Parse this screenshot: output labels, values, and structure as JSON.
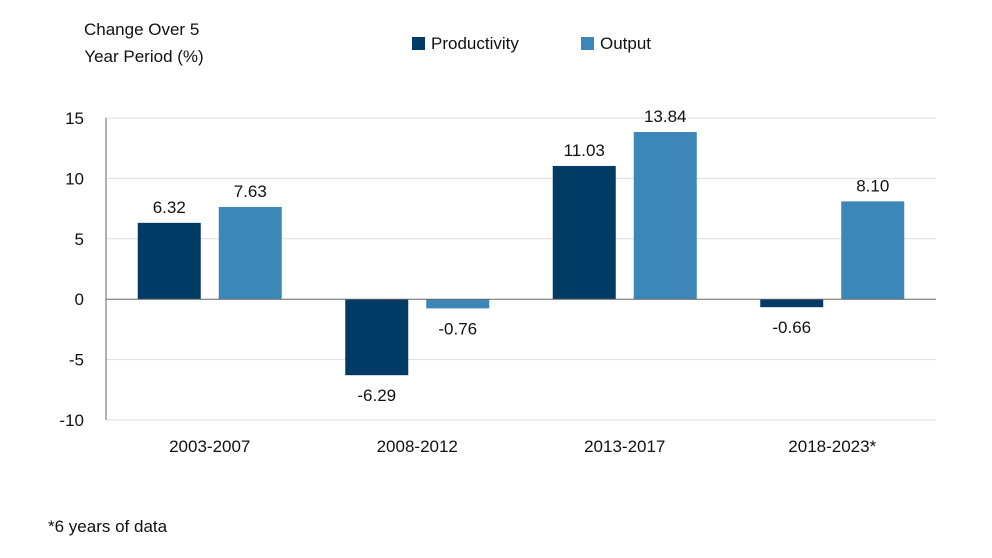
{
  "chart_data": {
    "type": "bar",
    "ylabel": [
      "Change Over 5",
      "Year Period (%)"
    ],
    "categories": [
      "2003-2007",
      "2008-2012",
      "2013-2017",
      "2018-2023*"
    ],
    "series": [
      {
        "name": "Productivity",
        "color": "#003b66",
        "values": [
          6.32,
          -6.29,
          11.03,
          -0.66
        ],
        "labels": [
          "6.32",
          "-6.29",
          "11.03",
          "-0.66"
        ]
      },
      {
        "name": "Output",
        "color": "#3d86b8",
        "values": [
          7.63,
          -0.76,
          13.84,
          8.1
        ],
        "labels": [
          "7.63",
          "-0.76",
          "13.84",
          "8.10"
        ]
      }
    ],
    "ylim": [
      -10,
      15
    ],
    "yticks": [
      15,
      10,
      5,
      0,
      -5,
      -10
    ],
    "grid": true,
    "legend": "top-center",
    "footnote": "*6 years of data"
  }
}
